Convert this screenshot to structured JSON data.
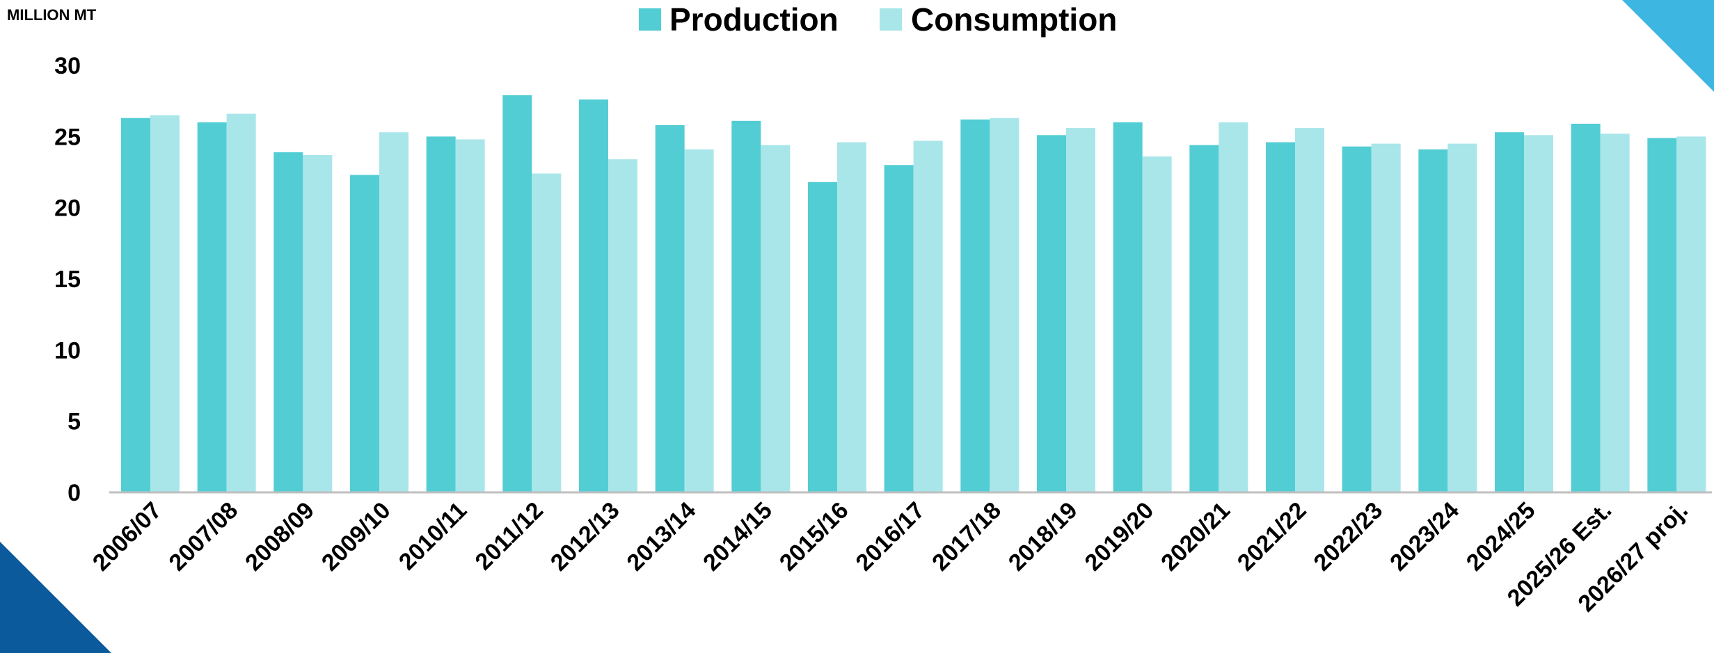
{
  "chart_data": {
    "type": "bar",
    "unit_label": "MILLION MT",
    "categories": [
      "2006/07",
      "2007/08",
      "2008/09",
      "2009/10",
      "2010/11",
      "2011/12",
      "2012/13",
      "2013/14",
      "2014/15",
      "2015/16",
      "2016/17",
      "2017/18",
      "2018/19",
      "2019/20",
      "2020/21",
      "2021/22",
      "2022/23",
      "2023/24",
      "2024/25",
      "2025/26 Est.",
      "2026/27 proj."
    ],
    "series": [
      {
        "name": "Production",
        "color": "#52CDD4",
        "values": [
          26.3,
          26.0,
          23.9,
          22.3,
          25.0,
          27.9,
          27.6,
          25.8,
          26.1,
          21.8,
          23.0,
          26.2,
          25.1,
          26.0,
          24.4,
          24.6,
          24.3,
          24.1,
          25.3,
          25.9,
          24.9
        ]
      },
      {
        "name": "Consumption",
        "color": "#A9E6EA",
        "values": [
          26.5,
          26.6,
          23.7,
          25.3,
          24.8,
          22.4,
          23.4,
          24.1,
          24.4,
          24.6,
          24.7,
          26.3,
          25.6,
          23.6,
          26.0,
          25.6,
          24.5,
          24.5,
          25.1,
          25.2,
          25.0
        ]
      }
    ],
    "yticks": [
      "0",
      "5",
      "10",
      "15",
      "20",
      "25",
      "30"
    ],
    "ylim": [
      0,
      30
    ],
    "grid": false,
    "legend_position": "top-center"
  },
  "decor": {
    "corner_top_right_color": "#3DB6E2",
    "corner_bottom_left_color": "#0B5A9C",
    "axis_color": "#BFBFBF"
  }
}
